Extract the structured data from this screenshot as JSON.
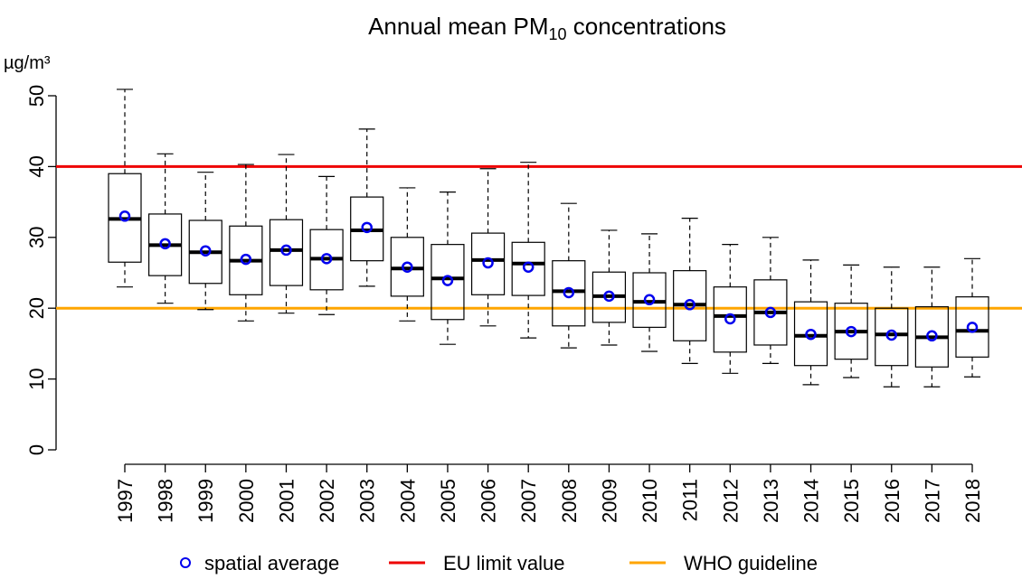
{
  "chart_data": {
    "type": "box",
    "title": {
      "text": "Annual mean PM",
      "subscript": "10",
      "rest": " concentrations"
    },
    "y_unit": "µg/m³",
    "categories": [
      "1997",
      "1998",
      "1999",
      "2000",
      "2001",
      "2002",
      "2003",
      "2004",
      "2005",
      "2006",
      "2007",
      "2008",
      "2009",
      "2010",
      "2011",
      "2012",
      "2013",
      "2014",
      "2015",
      "2016",
      "2017",
      "2018"
    ],
    "whisker_low": [
      23.0,
      20.7,
      19.8,
      18.2,
      19.3,
      19.1,
      23.1,
      18.2,
      14.9,
      17.5,
      15.8,
      14.4,
      14.8,
      13.9,
      12.2,
      10.8,
      12.2,
      9.2,
      10.2,
      8.9,
      8.9,
      10.3
    ],
    "q1": [
      26.5,
      24.6,
      23.5,
      21.9,
      23.2,
      22.6,
      26.7,
      21.7,
      18.4,
      21.9,
      21.8,
      17.5,
      18.0,
      17.3,
      15.4,
      13.8,
      14.8,
      11.9,
      12.8,
      11.9,
      11.7,
      13.1
    ],
    "median": [
      32.6,
      28.9,
      27.9,
      26.7,
      28.2,
      27.0,
      31.0,
      25.6,
      24.2,
      26.8,
      26.3,
      22.4,
      21.7,
      20.9,
      20.5,
      18.9,
      19.4,
      16.1,
      16.7,
      16.3,
      15.9,
      16.8
    ],
    "q3": [
      39.0,
      33.3,
      32.4,
      31.6,
      32.5,
      31.1,
      35.7,
      30.0,
      29.0,
      30.6,
      29.3,
      26.7,
      25.1,
      25.0,
      25.3,
      23.0,
      24.0,
      20.9,
      20.7,
      20.0,
      20.2,
      21.6
    ],
    "whisker_high": [
      50.9,
      41.8,
      39.2,
      40.3,
      41.7,
      38.6,
      45.3,
      37.0,
      36.4,
      39.7,
      40.6,
      34.8,
      31.0,
      30.5,
      32.7,
      29.0,
      30.0,
      26.8,
      26.1,
      25.8,
      25.8,
      27.0
    ],
    "mean": {
      "name": "spatial average",
      "color": "#0000ee",
      "values": [
        33.0,
        29.1,
        28.1,
        26.9,
        28.2,
        27.0,
        31.4,
        25.8,
        23.9,
        26.4,
        25.8,
        22.2,
        21.7,
        21.2,
        20.5,
        18.5,
        19.4,
        16.3,
        16.7,
        16.2,
        16.1,
        17.3
      ]
    },
    "hlines": [
      {
        "name": "EU limit value",
        "value": 40,
        "color": "#ee0000"
      },
      {
        "name": "WHO guideline",
        "value": 20,
        "color": "#ffa500"
      }
    ],
    "ylim": [
      0,
      50
    ],
    "yticks": [
      0,
      10,
      20,
      30,
      40,
      50
    ]
  }
}
